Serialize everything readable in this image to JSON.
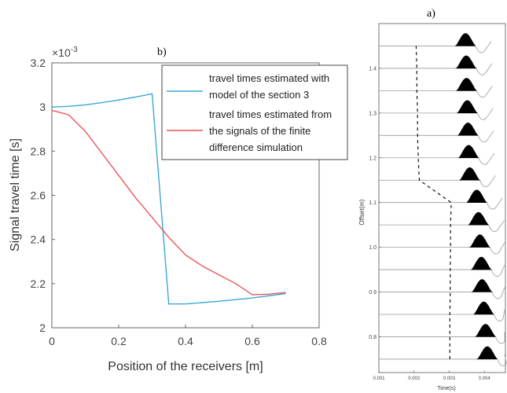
{
  "chart_data": [
    {
      "panel_label": "b)",
      "type": "line",
      "xlabel": "Position of the receivers [m]",
      "ylabel": "Signal travel time [s]",
      "y_exponent_text": "×10",
      "y_exponent_power": "-3",
      "xlim": [
        0,
        0.8
      ],
      "ylim": [
        2.0,
        3.2
      ],
      "x_ticks": [
        "0",
        "0.2",
        "0.4",
        "0.6",
        "0.8"
      ],
      "y_ticks": [
        "2",
        "2.2",
        "2.4",
        "2.6",
        "2.8",
        "3",
        "3.2"
      ],
      "legend_placement": "top-right",
      "series": [
        {
          "name_lines": [
            "travel times estimated with",
            "model of the section 3"
          ],
          "color": "#3aa8d8",
          "x": [
            0.0,
            0.05,
            0.1,
            0.15,
            0.2,
            0.25,
            0.3,
            0.35,
            0.4,
            0.5,
            0.6,
            0.7
          ],
          "y": [
            3.0,
            3.003,
            3.01,
            3.02,
            3.032,
            3.045,
            3.06,
            2.108,
            2.108,
            2.12,
            2.135,
            2.155
          ]
        },
        {
          "name_lines": [
            "travel times estimated from",
            "the signals of the finite",
            "difference simulation"
          ],
          "color": "#e8575a",
          "x": [
            0.0,
            0.05,
            0.1,
            0.15,
            0.2,
            0.25,
            0.3,
            0.35,
            0.4,
            0.45,
            0.5,
            0.55,
            0.6,
            0.65,
            0.7
          ],
          "y": [
            2.985,
            2.965,
            2.89,
            2.79,
            2.69,
            2.59,
            2.5,
            2.41,
            2.33,
            2.28,
            2.24,
            2.2,
            2.15,
            2.152,
            2.16
          ]
        }
      ]
    },
    {
      "panel_label": "a)",
      "type": "line",
      "xlabel": "Time(s)",
      "ylabel": "Offset(m)",
      "xlim": [
        0.001,
        0.0046
      ],
      "ylim": [
        0.72,
        1.5
      ],
      "x_ticks": [
        "0.001",
        "0.002",
        "0.003",
        "0.004"
      ],
      "y_ticks": [
        "0.8",
        "0.9",
        "1.0",
        "1.1",
        "1.2",
        "1.3",
        "1.4"
      ],
      "traces": {
        "offsets": [
          0.75,
          0.8,
          0.85,
          0.9,
          0.95,
          1.0,
          1.05,
          1.1,
          1.15,
          1.2,
          1.25,
          1.3,
          1.35,
          1.4,
          1.45
        ],
        "arrival_peak_times": [
          0.00415,
          0.0041,
          0.00405,
          0.004,
          0.00398,
          0.00394,
          0.0039,
          0.00385,
          0.00365,
          0.00362,
          0.0036,
          0.00358,
          0.00356,
          0.00355,
          0.00353
        ]
      },
      "picks": {
        "x": [
          0.00302,
          0.00302,
          0.00302,
          0.00303,
          0.00303,
          0.00304,
          0.00304,
          0.00306,
          0.00215,
          0.00212,
          0.0021,
          0.0021,
          0.00208,
          0.00208,
          0.00206
        ],
        "y": [
          0.75,
          0.8,
          0.85,
          0.9,
          0.95,
          1.0,
          1.05,
          1.1,
          1.15,
          1.2,
          1.25,
          1.3,
          1.35,
          1.4,
          1.45
        ]
      }
    }
  ]
}
